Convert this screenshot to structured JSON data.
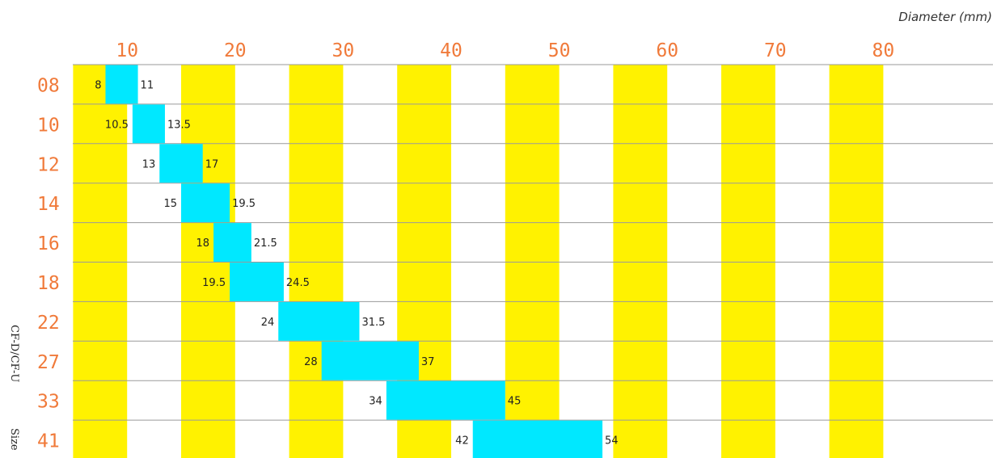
{
  "header": {
    "unit_label": "Diameter (mm)"
  },
  "yaxis": {
    "title_part1": "CF-D/CF-U",
    "title_part2": "Size"
  },
  "colors": {
    "band": "#fff200",
    "bar": "#00e8ff",
    "tick": "#f07a3a",
    "grid": "#9a9a9a",
    "label": "#222222"
  },
  "chart_data": {
    "type": "bar",
    "orientation": "horizontal-range",
    "title": "",
    "xlabel": "Diameter (mm)",
    "ylabel": "CF-D/CF-U Size",
    "xlim": [
      0,
      85
    ],
    "x_ticks": [
      "10",
      "20",
      "30",
      "40",
      "50",
      "60",
      "70",
      "80"
    ],
    "x_tick_values": [
      10,
      20,
      30,
      40,
      50,
      60,
      70,
      80
    ],
    "band_ranges": [
      [
        5,
        10
      ],
      [
        15,
        20
      ],
      [
        25,
        30
      ],
      [
        35,
        40
      ],
      [
        45,
        50
      ],
      [
        55,
        60
      ],
      [
        65,
        70
      ],
      [
        75,
        80
      ]
    ],
    "categories": [
      "08",
      "10",
      "12",
      "14",
      "16",
      "18",
      "22",
      "27",
      "33",
      "41"
    ],
    "series": [
      {
        "min": [
          8,
          10.5,
          13,
          15,
          18,
          19.5,
          24,
          28,
          34,
          42
        ],
        "max": [
          11,
          13.5,
          17,
          19.5,
          21.5,
          24.5,
          31.5,
          37,
          45,
          54
        ],
        "min_labels": [
          "8",
          "10.5",
          "13",
          "15",
          "18",
          "19.5",
          "24",
          "28",
          "34",
          "42"
        ],
        "max_labels": [
          "11",
          "13.5",
          "17",
          "19.5",
          "21.5",
          "24.5",
          "31.5",
          "37",
          "45",
          "54"
        ]
      }
    ],
    "grid": true,
    "legend": "none"
  }
}
